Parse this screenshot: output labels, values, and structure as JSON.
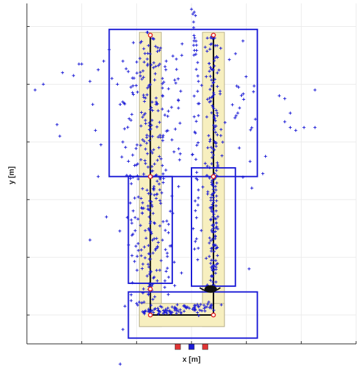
{
  "chart_data": {
    "type": "scatter",
    "xlabel": "x [m]",
    "ylabel": "y [m]",
    "xlim": [
      0,
      12
    ],
    "ylim": [
      0,
      11.8
    ],
    "x_ticks": [
      0,
      2,
      4,
      6,
      8,
      10,
      12
    ],
    "y_ticks": [
      1,
      3,
      5,
      7,
      9,
      11
    ],
    "grid": true,
    "tick_labels_visible": false,
    "colors": {
      "scatter": "#1a1ad6",
      "region_outline": "#1a1ad6",
      "corridor_fill": "#f7efbf",
      "corridor_outline": "#b8b08a",
      "path": "#000000",
      "waypoint": "#e02020",
      "square_red": "#e03434",
      "square_blue": "#1a1ad6",
      "grid": "#ebebeb",
      "axes": "#262626"
    },
    "corridors": [
      {
        "x0": 4.1,
        "x1": 4.9,
        "y0": 0.6,
        "y1": 10.8
      },
      {
        "x0": 6.4,
        "x1": 7.2,
        "y0": 0.6,
        "y1": 10.8
      },
      {
        "x0": 4.1,
        "x1": 7.2,
        "y0": 0.6,
        "y1": 1.4
      }
    ],
    "regions": [
      {
        "x0": 3.0,
        "x1": 8.4,
        "y0": 5.8,
        "y1": 10.9
      },
      {
        "x0": 3.7,
        "x1": 5.3,
        "y0": 2.1,
        "y1": 5.8
      },
      {
        "x0": 6.0,
        "x1": 7.6,
        "y0": 2.0,
        "y1": 6.1
      },
      {
        "x0": 3.7,
        "x1": 8.4,
        "y0": 0.2,
        "y1": 1.8
      }
    ],
    "path": {
      "x": [
        4.5,
        4.5,
        4.5,
        6.8,
        6.8,
        6.8
      ],
      "y": [
        10.7,
        5.8,
        1.0,
        1.0,
        5.8,
        10.7
      ]
    },
    "waypoints": {
      "x": [
        4.5,
        4.5,
        4.5,
        4.5,
        6.8,
        6.8,
        6.8
      ],
      "y": [
        10.7,
        5.8,
        1.9,
        1.0,
        1.0,
        5.8,
        10.7
      ]
    },
    "robot": {
      "x": 6.7,
      "y": 1.9
    },
    "squares": [
      {
        "x": 5.5,
        "y": -0.1,
        "color": "#e03434"
      },
      {
        "x": 6.0,
        "y": -0.1,
        "color": "#1a1ad6"
      },
      {
        "x": 6.5,
        "y": -0.1,
        "color": "#e03434"
      }
    ],
    "clusters": [
      {
        "x0": 4.5,
        "y0": 10.7,
        "x1": 4.5,
        "y1": 5.8,
        "n": 120,
        "sx": 0.3,
        "sy": 0.1
      },
      {
        "x0": 4.5,
        "y0": 5.8,
        "x1": 4.5,
        "y1": 1.1,
        "n": 130,
        "sx": 0.32,
        "sy": 0.1
      },
      {
        "x0": 6.8,
        "y0": 10.7,
        "x1": 6.8,
        "y1": 5.9,
        "n": 90,
        "sx": 0.15,
        "sy": 0.1
      },
      {
        "x0": 6.8,
        "y0": 5.9,
        "x1": 6.8,
        "y1": 1.9,
        "n": 110,
        "sx": 0.1,
        "sy": 0.08
      },
      {
        "x0": 4.3,
        "y0": 1.1,
        "x1": 6.8,
        "y1": 1.3,
        "n": 90,
        "sx": 0.1,
        "sy": 0.07
      },
      {
        "x0": 3.6,
        "y0": 9.5,
        "x1": 3.9,
        "y1": 3.0,
        "n": 40,
        "sx": 0.18,
        "sy": 0.1
      },
      {
        "x0": 5.0,
        "y0": 10.0,
        "x1": 5.2,
        "y1": 2.5,
        "n": 35,
        "sx": 0.25,
        "sy": 0.1
      },
      {
        "x0": 6.2,
        "y0": 10.5,
        "x1": 6.2,
        "y1": 3.0,
        "n": 40,
        "sx": 0.1,
        "sy": 0.1
      },
      {
        "x0": 6.1,
        "y0": 11.5,
        "x1": 6.1,
        "y1": 10.0,
        "n": 10,
        "sx": 0.04,
        "sy": 0.05
      },
      {
        "x0": 5.6,
        "y0": 10.4,
        "x1": 5.5,
        "y1": 6.5,
        "n": 15,
        "sx": 0.12,
        "sy": 0.15
      },
      {
        "x0": 7.5,
        "y0": 10.5,
        "x1": 7.8,
        "y1": 6.0,
        "n": 15,
        "sx": 0.3,
        "sy": 0.2
      },
      {
        "x0": 7.9,
        "y0": 8.5,
        "x1": 7.9,
        "y1": 8.5,
        "n": 10,
        "sx": 0.4,
        "sy": 0.5
      }
    ],
    "outliers": {
      "x": [
        0.3,
        0.6,
        1.3,
        1.7,
        1.9,
        2.0,
        2.3,
        2.4,
        2.6,
        2.8,
        3.0,
        3.1,
        3.3,
        3.5,
        1.1,
        1.2,
        2.5,
        2.7,
        3.4,
        2.6,
        9.2,
        9.4,
        9.6,
        9.6,
        9.8,
        10.1,
        10.5,
        10.5,
        9.4,
        8.7,
        8.6,
        8.2,
        3.5,
        3.8,
        3.8,
        2.9,
        2.3,
        4.0,
        6.0,
        6.1,
        8.1,
        3.4
      ],
      "y": [
        8.8,
        9.0,
        9.4,
        9.3,
        9.7,
        9.7,
        9.1,
        8.3,
        9.5,
        9.8,
        10.2,
        9.2,
        9.0,
        9.8,
        7.6,
        7.2,
        7.4,
        6.9,
        8.3,
        5.8,
        8.6,
        8.5,
        8.0,
        7.5,
        7.4,
        7.5,
        8.8,
        7.5,
        7.7,
        6.5,
        5.9,
        5.4,
        0.5,
        1.7,
        1.5,
        4.4,
        3.6,
        1.4,
        11.6,
        11.5,
        2.6,
        -0.7
      ]
    }
  }
}
